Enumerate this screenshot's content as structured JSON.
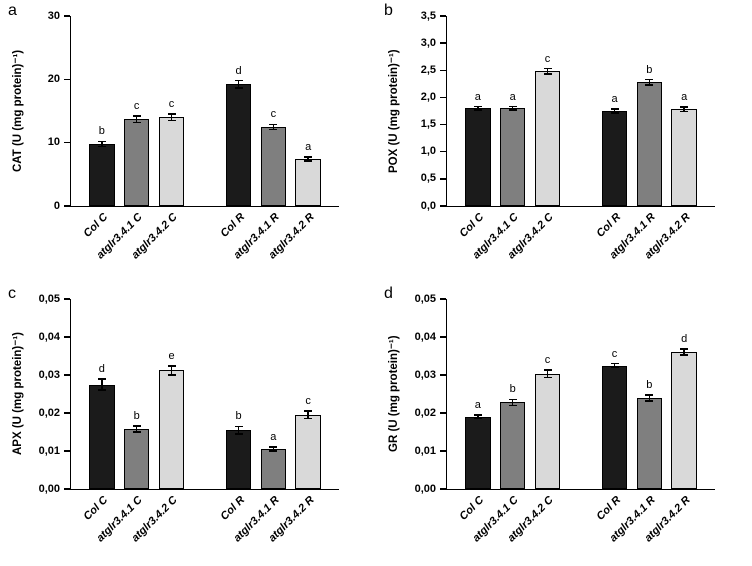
{
  "figure": {
    "background": "#ffffff",
    "axis_color": "#000000",
    "bar_border_color": "#000000",
    "series_colors": [
      "#1b1b1b",
      "#7f7f7f",
      "#d9d9d9"
    ]
  },
  "chart_data": [
    {
      "type": "bar",
      "panel": "a",
      "ylabel": "CAT (U (mg protein)⁻¹)",
      "categories": [
        "Col C",
        "atglr3.4.1 C",
        "atglr3.4.2 C",
        "Col R",
        "atglr3.4.1 R",
        "atglr3.4.2 R"
      ],
      "values": [
        9.8,
        13.7,
        14.0,
        19.2,
        12.5,
        7.4
      ],
      "errors": [
        0.4,
        0.5,
        0.5,
        0.6,
        0.4,
        0.3
      ],
      "sig_letters": [
        "b",
        "c",
        "c",
        "d",
        "c",
        "a"
      ],
      "bar_colors": [
        "#1b1b1b",
        "#7f7f7f",
        "#d9d9d9",
        "#1b1b1b",
        "#7f7f7f",
        "#d9d9d9"
      ],
      "ylim": [
        0,
        30
      ],
      "yticks": [
        0,
        10,
        20,
        30
      ],
      "ytick_labels": [
        "0",
        "10",
        "20",
        "30"
      ],
      "grid": false,
      "legend": null
    },
    {
      "type": "bar",
      "panel": "b",
      "ylabel": "POX (U (mg protein)⁻¹)",
      "categories": [
        "Col C",
        "atglr3.4.1 C",
        "atglr3.4.2 C",
        "Col R",
        "atglr3.4.1 R",
        "atglr3.4.2 R"
      ],
      "values": [
        1.8,
        1.8,
        2.48,
        1.75,
        2.28,
        1.78
      ],
      "errors": [
        0.03,
        0.03,
        0.05,
        0.04,
        0.05,
        0.04
      ],
      "sig_letters": [
        "a",
        "a",
        "c",
        "a",
        "b",
        "a"
      ],
      "bar_colors": [
        "#1b1b1b",
        "#7f7f7f",
        "#d9d9d9",
        "#1b1b1b",
        "#7f7f7f",
        "#d9d9d9"
      ],
      "ylim": [
        0,
        3.5
      ],
      "yticks": [
        0,
        0.5,
        1.0,
        1.5,
        2.0,
        2.5,
        3.0,
        3.5
      ],
      "ytick_labels": [
        "0,0",
        "0,5",
        "1,0",
        "1,5",
        "2,0",
        "2,5",
        "3,0",
        "3,5"
      ],
      "grid": false,
      "legend": null
    },
    {
      "type": "bar",
      "panel": "c",
      "ylabel": "APX (U (mg protein)⁻¹)",
      "categories": [
        "Col C",
        "atglr3.4.1 C",
        "atglr3.4.2 C",
        "Col R",
        "atglr3.4.1 R",
        "atglr3.4.2 R"
      ],
      "values": [
        0.0275,
        0.0158,
        0.0312,
        0.0155,
        0.0105,
        0.0195
      ],
      "errors": [
        0.0015,
        0.0008,
        0.0012,
        0.001,
        0.0005,
        0.001
      ],
      "sig_letters": [
        "d",
        "b",
        "e",
        "b",
        "a",
        "c"
      ],
      "bar_colors": [
        "#1b1b1b",
        "#7f7f7f",
        "#d9d9d9",
        "#1b1b1b",
        "#7f7f7f",
        "#d9d9d9"
      ],
      "ylim": [
        0,
        0.05
      ],
      "yticks": [
        0,
        0.01,
        0.02,
        0.03,
        0.04,
        0.05
      ],
      "ytick_labels": [
        "0,00",
        "0,01",
        "0,02",
        "0,03",
        "0,04",
        "0,05"
      ],
      "grid": false,
      "legend": null
    },
    {
      "type": "bar",
      "panel": "d",
      "ylabel": "GR (U (mg protein)⁻¹)",
      "categories": [
        "Col C",
        "atglr3.4.1 C",
        "atglr3.4.2 C",
        "Col R",
        "atglr3.4.1 R",
        "atglr3.4.2 R"
      ],
      "values": [
        0.019,
        0.0228,
        0.0303,
        0.0325,
        0.024,
        0.036
      ],
      "errors": [
        0.0005,
        0.0008,
        0.001,
        0.0005,
        0.0008,
        0.0008
      ],
      "sig_letters": [
        "a",
        "b",
        "c",
        "c",
        "b",
        "d"
      ],
      "bar_colors": [
        "#1b1b1b",
        "#7f7f7f",
        "#d9d9d9",
        "#1b1b1b",
        "#7f7f7f",
        "#d9d9d9"
      ],
      "ylim": [
        0,
        0.05
      ],
      "yticks": [
        0,
        0.01,
        0.02,
        0.03,
        0.04,
        0.05
      ],
      "ytick_labels": [
        "0,00",
        "0,01",
        "0,02",
        "0,03",
        "0,04",
        "0,05"
      ],
      "grid": false,
      "legend": null
    }
  ]
}
